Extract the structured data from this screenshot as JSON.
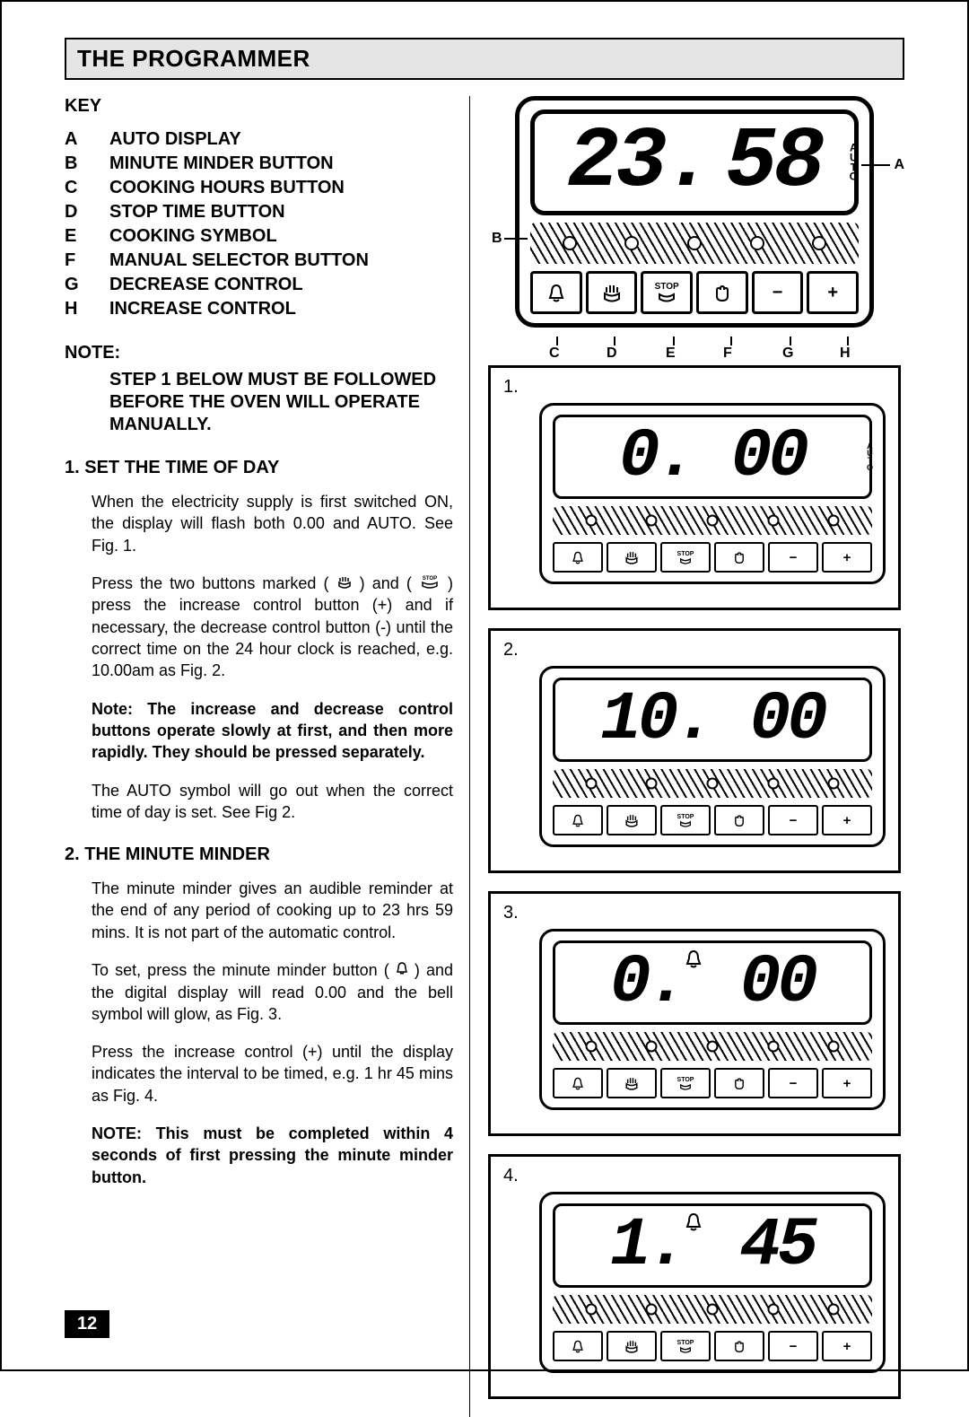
{
  "header_title": "THE PROGRAMMER",
  "key_heading": "KEY",
  "key_items": [
    {
      "letter": "A",
      "label": "AUTO DISPLAY"
    },
    {
      "letter": "B",
      "label": "MINUTE MINDER BUTTON"
    },
    {
      "letter": "C",
      "label": "COOKING HOURS BUTTON"
    },
    {
      "letter": "D",
      "label": "STOP TIME BUTTON"
    },
    {
      "letter": "E",
      "label": "COOKING SYMBOL"
    },
    {
      "letter": "F",
      "label": "MANUAL SELECTOR BUTTON"
    },
    {
      "letter": "G",
      "label": "DECREASE CONTROL"
    },
    {
      "letter": "H",
      "label": "INCREASE CONTROL"
    }
  ],
  "note_heading": "NOTE:",
  "note_body": "STEP 1 BELOW MUST BE FOLLOWED  BEFORE THE OVEN WILL OPERATE MANUALLY.",
  "section1": {
    "heading": "1.  SET THE TIME OF DAY",
    "p1": "When the electricity supply is first switched ON, the display will flash both 0.00 and AUTO.  See Fig. 1.",
    "p2a": "Press the two buttons marked  ( ",
    "p2b": " ) and ( ",
    "p2c": " ) press the increase control button (+) and if necessary, the decrease control button (-)  until the correct time on the 24 hour clock is reached, e.g. 10.00am as Fig. 2.",
    "p3": "Note: The increase and decrease control buttons operate slowly at first, and then more rapidly.  They should be pressed separately.",
    "p4": "The AUTO symbol will go out when the correct time of day is set.  See Fig 2."
  },
  "section2": {
    "heading": "2.  THE MINUTE MINDER",
    "p1": "The minute minder gives an audible reminder at the end of  any period of cooking up to 23 hrs 59 mins.  It is not part of the automatic control.",
    "p2a": "To set, press the minute minder button ( ",
    "p2b": " ) and the digital display will read 0.00 and the bell symbol will glow, as Fig. 3.",
    "p3": "Press the increase control (+) until the display indicates the interval to be timed, e.g. 1 hr 45 mins as Fig. 4.",
    "p4": "NOTE:  This must be completed within 4 seconds of first pressing the minute minder button."
  },
  "page_number": "12",
  "main_panel": {
    "time": "23. 58",
    "auto_letters": [
      "A",
      "U",
      "T",
      "O"
    ],
    "buttons": [
      "🔔",
      "⌇",
      "STOP",
      "✋",
      "−",
      "+"
    ],
    "callouts": [
      "A",
      "B",
      "C",
      "D",
      "E",
      "F",
      "G",
      "H"
    ]
  },
  "figures": [
    {
      "num": "1.",
      "display": "0. 00",
      "auto": true,
      "bell_glow": false
    },
    {
      "num": "2.",
      "display": "10. 00",
      "auto": false,
      "bell_glow": false
    },
    {
      "num": "3.",
      "display": "0. 00",
      "auto": false,
      "bell_glow": true,
      "bell_sup": "🔔"
    },
    {
      "num": "4.",
      "display": "1. 45",
      "auto": false,
      "bell_glow": true,
      "bell_sup": "🔔"
    }
  ],
  "small_buttons": [
    "🔔",
    "⌇",
    "STOP",
    "✋",
    "−",
    "+"
  ],
  "colors": {
    "page_bg": "#ffffff",
    "header_bg": "#e5e5e5",
    "text": "#000000",
    "border": "#000000",
    "pagenum_bg": "#000000",
    "pagenum_fg": "#ffffff"
  }
}
